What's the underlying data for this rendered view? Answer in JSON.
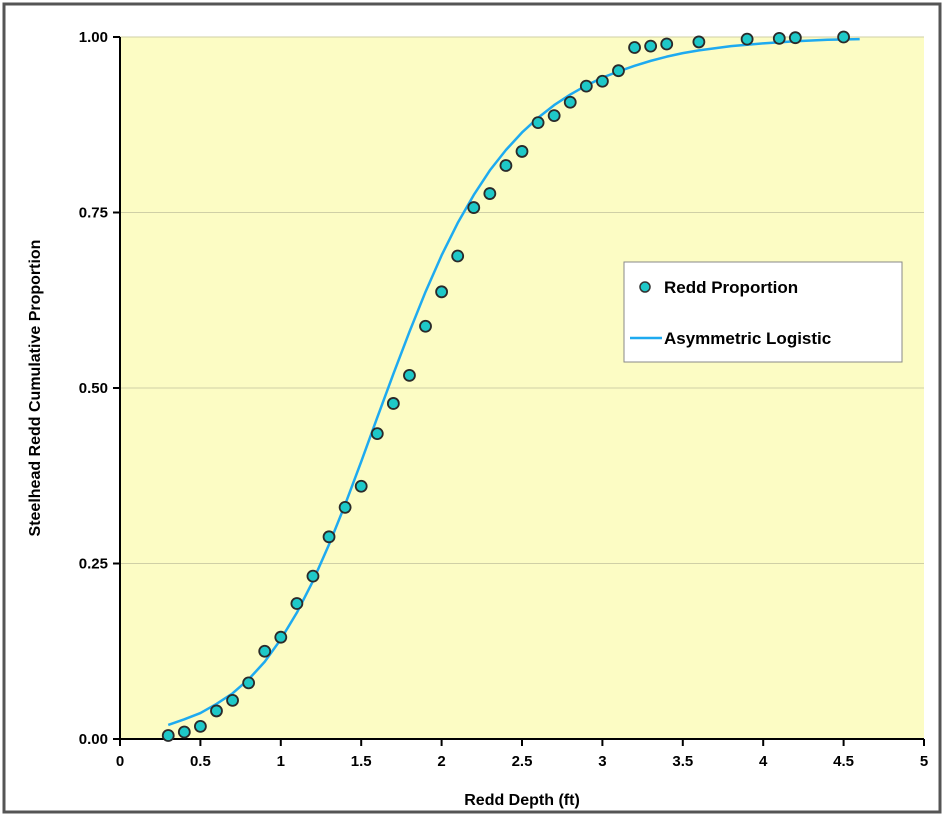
{
  "chart_data": {
    "type": "scatter",
    "xlabel": "Redd Depth (ft)",
    "ylabel": "Steelhead Redd Cumulative Proportion",
    "xlim": [
      0,
      5
    ],
    "ylim": [
      0,
      1
    ],
    "x_ticks": [
      0,
      0.5,
      1,
      1.5,
      2,
      2.5,
      3,
      3.5,
      4,
      4.5,
      5
    ],
    "x_tick_labels": [
      "0",
      "0.5",
      "1",
      "1.5",
      "2",
      "2.5",
      "3",
      "3.5",
      "4",
      "4.5",
      "5"
    ],
    "y_ticks": [
      0,
      0.25,
      0.5,
      0.75,
      1
    ],
    "y_tick_labels": [
      "0.00",
      "0.25",
      "0.50",
      "0.75",
      "1.00"
    ],
    "grid": "horizontal",
    "background_color": "#fcfcc4",
    "legend_position": "right-middle",
    "series": [
      {
        "name": "Redd Proportion",
        "kind": "points",
        "color": "#1ec8c8",
        "x": [
          0.3,
          0.4,
          0.5,
          0.6,
          0.7,
          0.8,
          0.9,
          1.0,
          1.1,
          1.2,
          1.3,
          1.4,
          1.5,
          1.6,
          1.7,
          1.8,
          1.9,
          2.0,
          2.1,
          2.2,
          2.3,
          2.4,
          2.5,
          2.6,
          2.7,
          2.8,
          2.9,
          3.0,
          3.1,
          3.2,
          3.3,
          3.4,
          3.6,
          3.9,
          4.1,
          4.2,
          4.5
        ],
        "y": [
          0.005,
          0.01,
          0.018,
          0.04,
          0.055,
          0.08,
          0.125,
          0.145,
          0.193,
          0.232,
          0.288,
          0.33,
          0.36,
          0.435,
          0.478,
          0.518,
          0.588,
          0.637,
          0.688,
          0.757,
          0.777,
          0.817,
          0.837,
          0.878,
          0.888,
          0.907,
          0.93,
          0.937,
          0.952,
          0.985,
          0.987,
          0.99,
          0.993,
          0.997,
          0.998,
          0.999,
          1.0
        ]
      },
      {
        "name": "Asymmetric Logistic",
        "kind": "line",
        "color": "#1eaaf0",
        "x": [
          0.3,
          0.4,
          0.5,
          0.6,
          0.7,
          0.8,
          0.9,
          1.0,
          1.1,
          1.2,
          1.3,
          1.4,
          1.5,
          1.6,
          1.7,
          1.8,
          1.9,
          2.0,
          2.1,
          2.2,
          2.3,
          2.4,
          2.5,
          2.6,
          2.7,
          2.8,
          2.9,
          3.0,
          3.1,
          3.2,
          3.3,
          3.4,
          3.5,
          3.6,
          3.7,
          3.8,
          3.9,
          4.0,
          4.2,
          4.4,
          4.6
        ],
        "y": [
          0.02,
          0.028,
          0.037,
          0.05,
          0.065,
          0.085,
          0.11,
          0.142,
          0.18,
          0.225,
          0.277,
          0.334,
          0.395,
          0.458,
          0.52,
          0.58,
          0.637,
          0.689,
          0.735,
          0.775,
          0.81,
          0.839,
          0.864,
          0.885,
          0.903,
          0.918,
          0.931,
          0.942,
          0.951,
          0.959,
          0.966,
          0.972,
          0.977,
          0.981,
          0.984,
          0.987,
          0.989,
          0.991,
          0.994,
          0.996,
          0.997
        ]
      }
    ]
  }
}
